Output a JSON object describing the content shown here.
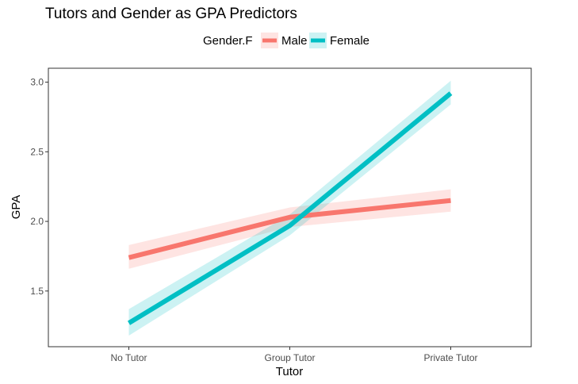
{
  "chart_data": {
    "type": "line",
    "title": "Tutors and Gender as GPA Predictors",
    "xlabel": "Tutor",
    "ylabel": "GPA",
    "categories": [
      "No Tutor",
      "Group Tutor",
      "Private Tutor"
    ],
    "ylim": [
      1.1,
      3.1
    ],
    "yticks": [
      1.5,
      2.0,
      2.5,
      3.0
    ],
    "ytick_labels": [
      "1.5",
      "2.0",
      "2.5",
      "3.0"
    ],
    "grid": false,
    "legend": {
      "title": "Gender.F",
      "position": "top"
    },
    "series": [
      {
        "name": "Male",
        "color": "#F8766D",
        "values": [
          1.74,
          2.03,
          2.15
        ],
        "lower": [
          1.66,
          1.96,
          2.07
        ],
        "upper": [
          1.83,
          2.1,
          2.23
        ]
      },
      {
        "name": "Female",
        "color": "#00BFC4",
        "values": [
          1.27,
          1.97,
          2.92
        ],
        "lower": [
          1.18,
          1.9,
          2.84
        ],
        "upper": [
          1.37,
          2.05,
          3.01
        ]
      }
    ]
  }
}
